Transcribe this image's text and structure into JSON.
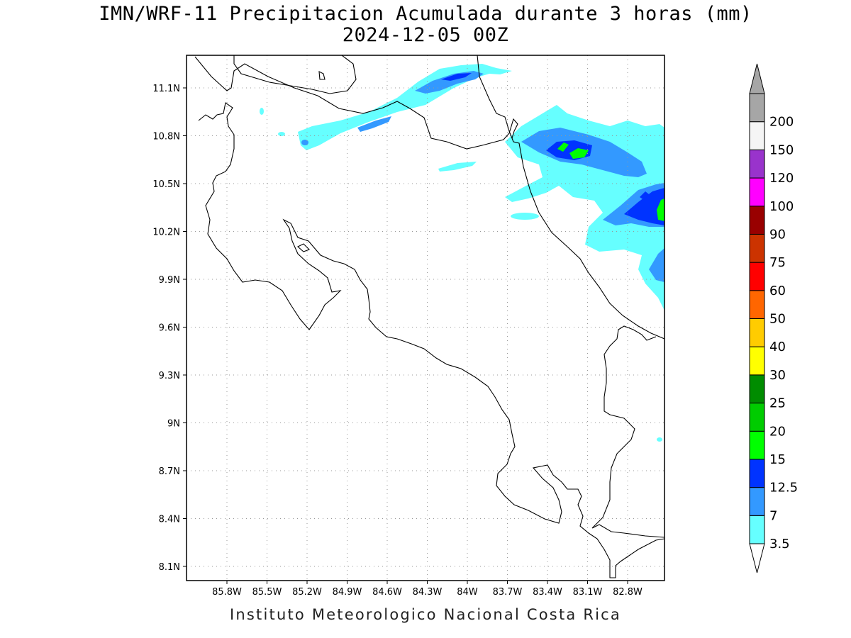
{
  "title_line1": "IMN/WRF-11 Precipitacion Acumulada durante 3 horas (mm)",
  "title_line2": "2024-12-05 00Z",
  "footer": "Instituto Meteorologico Nacional Costa Rica",
  "map": {
    "lon_labels": [
      "85.8W",
      "85.5W",
      "85.2W",
      "84.9W",
      "84.6W",
      "84.3W",
      "84W",
      "83.7W",
      "83.4W",
      "83.1W",
      "82.8W"
    ],
    "lat_labels": [
      "11.1N",
      "10.8N",
      "10.5N",
      "10.2N",
      "9.9N",
      "9.6N",
      "9.3N",
      "9N",
      "8.7N",
      "8.4N",
      "8.1N"
    ],
    "gridlines": "dotted"
  },
  "colorbar": {
    "bins": [
      {
        "color": "#66ffff",
        "label": "3.5"
      },
      {
        "color": "#3399ff",
        "label": "7"
      },
      {
        "color": "#0033ff",
        "label": "12.5"
      },
      {
        "color": "#00ff00",
        "label": "15"
      },
      {
        "color": "#00cc00",
        "label": "20"
      },
      {
        "color": "#008c00",
        "label": "25"
      },
      {
        "color": "#ffff00",
        "label": "30"
      },
      {
        "color": "#ffcc00",
        "label": "40"
      },
      {
        "color": "#ff6600",
        "label": "50"
      },
      {
        "color": "#ff0000",
        "label": "60"
      },
      {
        "color": "#cc3300",
        "label": "75"
      },
      {
        "color": "#990000",
        "label": "90"
      },
      {
        "color": "#ff00ff",
        "label": "100"
      },
      {
        "color": "#9933cc",
        "label": "120"
      },
      {
        "color": "#f5f5f5",
        "label": "150"
      },
      {
        "color": "#a6a6a6",
        "label": "200"
      }
    ]
  }
}
